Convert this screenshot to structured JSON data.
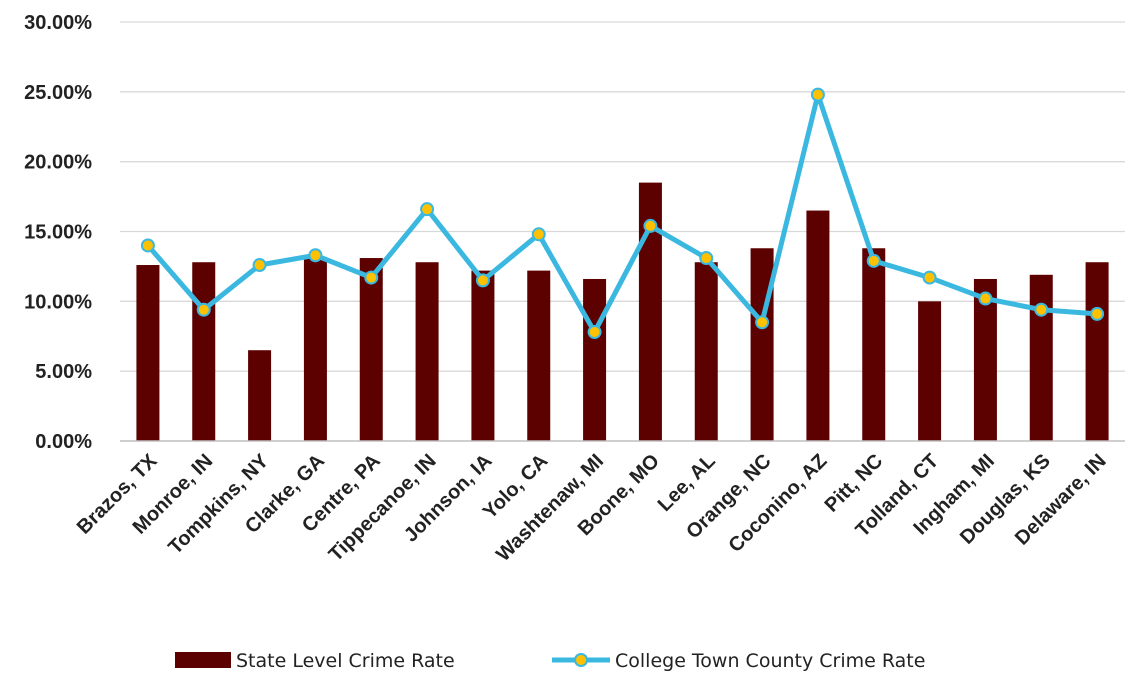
{
  "chart_data": {
    "type": "bar",
    "title": "",
    "xlabel": "",
    "ylabel": "",
    "categories": [
      "Brazos, TX",
      "Monroe, IN",
      "Tompkins, NY",
      "Clarke, GA",
      "Centre, PA",
      "Tippecanoe, IN",
      "Johnson, IA",
      "Yolo, CA",
      "Washtenaw, MI",
      "Boone, MO",
      "Lee, AL",
      "Orange, NC",
      "Coconino, AZ",
      "Pitt, NC",
      "Tolland, CT",
      "Ingham, MI",
      "Douglas, KS",
      "Delaware, IN"
    ],
    "series": [
      {
        "name": "State Level Crime Rate",
        "type": "bar",
        "color": "#5c0000",
        "values": [
          12.6,
          12.8,
          6.5,
          13.1,
          13.1,
          12.8,
          12.2,
          12.2,
          11.6,
          18.5,
          12.8,
          13.8,
          16.5,
          13.8,
          10.0,
          11.6,
          11.9,
          12.8
        ]
      },
      {
        "name": "College Town County Crime Rate",
        "type": "line",
        "color": "#3bb8e0",
        "marker_color": "#ffc000",
        "values": [
          14.0,
          9.4,
          12.6,
          13.3,
          11.7,
          16.6,
          11.5,
          14.8,
          7.8,
          15.4,
          13.1,
          8.5,
          24.8,
          12.9,
          11.7,
          10.2,
          9.4,
          9.1
        ]
      }
    ],
    "y_ticks": [
      "0.00%",
      "5.00%",
      "10.00%",
      "15.00%",
      "20.00%",
      "25.00%",
      "30.00%"
    ],
    "ylim": [
      0,
      30
    ],
    "y_unit": "percent",
    "grid": true,
    "legend_position": "bottom"
  }
}
